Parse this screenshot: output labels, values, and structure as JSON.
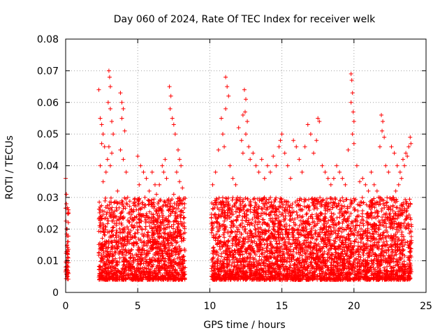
{
  "chart_data": {
    "type": "scatter",
    "title": "Day 060 of 2024, Rate Of TEC Index for receiver welk",
    "xlabel": "GPS time / hours",
    "ylabel": "ROTI / TECUs",
    "xlim": [
      0,
      25
    ],
    "ylim": [
      0,
      0.08
    ],
    "xticks": [
      "0",
      "5",
      "10",
      "15",
      "20",
      "25"
    ],
    "yticks": [
      "0",
      "0.01",
      "0.02",
      "0.03",
      "0.04",
      "0.05",
      "0.06",
      "0.07",
      "0.08"
    ],
    "grid": true,
    "marker": "+",
    "color": "#ff0000",
    "series": [
      {
        "points": [
          [
            0.0,
            0.036
          ],
          [
            0.05,
            0.031
          ],
          [
            0.05,
            0.028
          ],
          [
            0.1,
            0.02
          ],
          [
            0.1,
            0.015
          ],
          [
            0.15,
            0.01
          ],
          [
            0.0,
            0.008
          ],
          [
            0.1,
            0.005
          ],
          [
            0.2,
            0.025
          ],
          [
            0.15,
            0.012
          ],
          [
            2.3,
            0.064
          ],
          [
            2.4,
            0.055
          ],
          [
            2.5,
            0.053
          ],
          [
            2.6,
            0.05
          ],
          [
            2.5,
            0.047
          ],
          [
            2.7,
            0.046
          ],
          [
            2.4,
            0.04
          ],
          [
            2.8,
            0.038
          ],
          [
            2.6,
            0.035
          ],
          [
            2.9,
            0.042
          ],
          [
            3.0,
            0.07
          ],
          [
            3.05,
            0.068
          ],
          [
            3.1,
            0.065
          ],
          [
            2.95,
            0.06
          ],
          [
            3.1,
            0.058
          ],
          [
            3.2,
            0.054
          ],
          [
            3.3,
            0.05
          ],
          [
            3.0,
            0.046
          ],
          [
            3.2,
            0.044
          ],
          [
            3.1,
            0.04
          ],
          [
            3.8,
            0.063
          ],
          [
            3.9,
            0.06
          ],
          [
            4.0,
            0.058
          ],
          [
            3.9,
            0.055
          ],
          [
            4.1,
            0.051
          ],
          [
            3.8,
            0.045
          ],
          [
            4.0,
            0.042
          ],
          [
            4.2,
            0.038
          ],
          [
            3.6,
            0.032
          ],
          [
            4.3,
            0.03
          ],
          [
            5.0,
            0.043
          ],
          [
            5.2,
            0.04
          ],
          [
            5.4,
            0.038
          ],
          [
            5.6,
            0.036
          ],
          [
            5.1,
            0.034
          ],
          [
            5.8,
            0.032
          ],
          [
            6.0,
            0.038
          ],
          [
            6.2,
            0.034
          ],
          [
            5.5,
            0.03
          ],
          [
            6.4,
            0.028
          ],
          [
            6.7,
            0.04
          ],
          [
            6.8,
            0.038
          ],
          [
            7.0,
            0.036
          ],
          [
            6.9,
            0.042
          ],
          [
            7.2,
            0.065
          ],
          [
            7.3,
            0.062
          ],
          [
            7.25,
            0.058
          ],
          [
            7.4,
            0.055
          ],
          [
            7.5,
            0.053
          ],
          [
            7.6,
            0.05
          ],
          [
            7.8,
            0.045
          ],
          [
            7.9,
            0.042
          ],
          [
            8.0,
            0.04
          ],
          [
            7.7,
            0.038
          ],
          [
            7.9,
            0.035
          ],
          [
            8.1,
            0.033
          ],
          [
            7.5,
            0.031
          ],
          [
            7.3,
            0.029
          ],
          [
            6.5,
            0.034
          ],
          [
            6.3,
            0.031
          ],
          [
            10.2,
            0.034
          ],
          [
            10.4,
            0.038
          ],
          [
            10.6,
            0.045
          ],
          [
            10.8,
            0.055
          ],
          [
            10.9,
            0.05
          ],
          [
            11.0,
            0.046
          ],
          [
            11.1,
            0.068
          ],
          [
            11.2,
            0.065
          ],
          [
            11.3,
            0.062
          ],
          [
            11.1,
            0.058
          ],
          [
            11.4,
            0.04
          ],
          [
            11.6,
            0.036
          ],
          [
            11.8,
            0.034
          ],
          [
            12.0,
            0.052
          ],
          [
            12.2,
            0.048
          ],
          [
            12.3,
            0.044
          ],
          [
            12.4,
            0.064
          ],
          [
            12.5,
            0.061
          ],
          [
            12.45,
            0.057
          ],
          [
            12.6,
            0.054
          ],
          [
            12.3,
            0.056
          ],
          [
            12.5,
            0.05
          ],
          [
            12.7,
            0.046
          ],
          [
            12.8,
            0.042
          ],
          [
            13.0,
            0.044
          ],
          [
            13.2,
            0.04
          ],
          [
            13.4,
            0.038
          ],
          [
            13.6,
            0.042
          ],
          [
            13.8,
            0.036
          ],
          [
            14.0,
            0.04
          ],
          [
            14.2,
            0.038
          ],
          [
            14.4,
            0.043
          ],
          [
            14.6,
            0.04
          ],
          [
            14.8,
            0.046
          ],
          [
            14.9,
            0.048
          ],
          [
            15.0,
            0.05
          ],
          [
            15.2,
            0.044
          ],
          [
            15.4,
            0.04
          ],
          [
            15.6,
            0.036
          ],
          [
            15.8,
            0.048
          ],
          [
            16.0,
            0.046
          ],
          [
            16.2,
            0.042
          ],
          [
            16.4,
            0.038
          ],
          [
            16.6,
            0.046
          ],
          [
            16.8,
            0.053
          ],
          [
            17.0,
            0.05
          ],
          [
            17.2,
            0.044
          ],
          [
            17.4,
            0.048
          ],
          [
            17.5,
            0.055
          ],
          [
            17.6,
            0.054
          ],
          [
            17.8,
            0.04
          ],
          [
            18.0,
            0.038
          ],
          [
            18.2,
            0.036
          ],
          [
            18.4,
            0.034
          ],
          [
            18.6,
            0.036
          ],
          [
            18.8,
            0.04
          ],
          [
            19.0,
            0.038
          ],
          [
            19.2,
            0.036
          ],
          [
            19.4,
            0.034
          ],
          [
            19.6,
            0.045
          ],
          [
            19.8,
            0.069
          ],
          [
            19.85,
            0.067
          ],
          [
            19.9,
            0.063
          ],
          [
            19.8,
            0.06
          ],
          [
            19.95,
            0.057
          ],
          [
            20.0,
            0.054
          ],
          [
            19.9,
            0.05
          ],
          [
            20.0,
            0.047
          ],
          [
            20.2,
            0.04
          ],
          [
            20.4,
            0.035
          ],
          [
            20.6,
            0.036
          ],
          [
            20.8,
            0.034
          ],
          [
            21.0,
            0.032
          ],
          [
            21.2,
            0.038
          ],
          [
            21.4,
            0.034
          ],
          [
            21.6,
            0.032
          ],
          [
            21.9,
            0.056
          ],
          [
            22.0,
            0.054
          ],
          [
            21.95,
            0.051
          ],
          [
            22.1,
            0.049
          ],
          [
            21.8,
            0.046
          ],
          [
            22.2,
            0.04
          ],
          [
            22.4,
            0.038
          ],
          [
            22.6,
            0.046
          ],
          [
            22.8,
            0.044
          ],
          [
            23.0,
            0.04
          ],
          [
            23.2,
            0.038
          ],
          [
            23.4,
            0.042
          ],
          [
            23.6,
            0.044
          ],
          [
            23.8,
            0.046
          ],
          [
            23.9,
            0.049
          ],
          [
            23.95,
            0.047
          ],
          [
            23.7,
            0.043
          ],
          [
            23.5,
            0.04
          ],
          [
            23.3,
            0.036
          ],
          [
            23.1,
            0.034
          ],
          [
            22.9,
            0.032
          ],
          [
            22.7,
            0.03
          ],
          [
            21.7,
            0.03
          ],
          [
            21.3,
            0.028
          ]
        ]
      }
    ]
  }
}
